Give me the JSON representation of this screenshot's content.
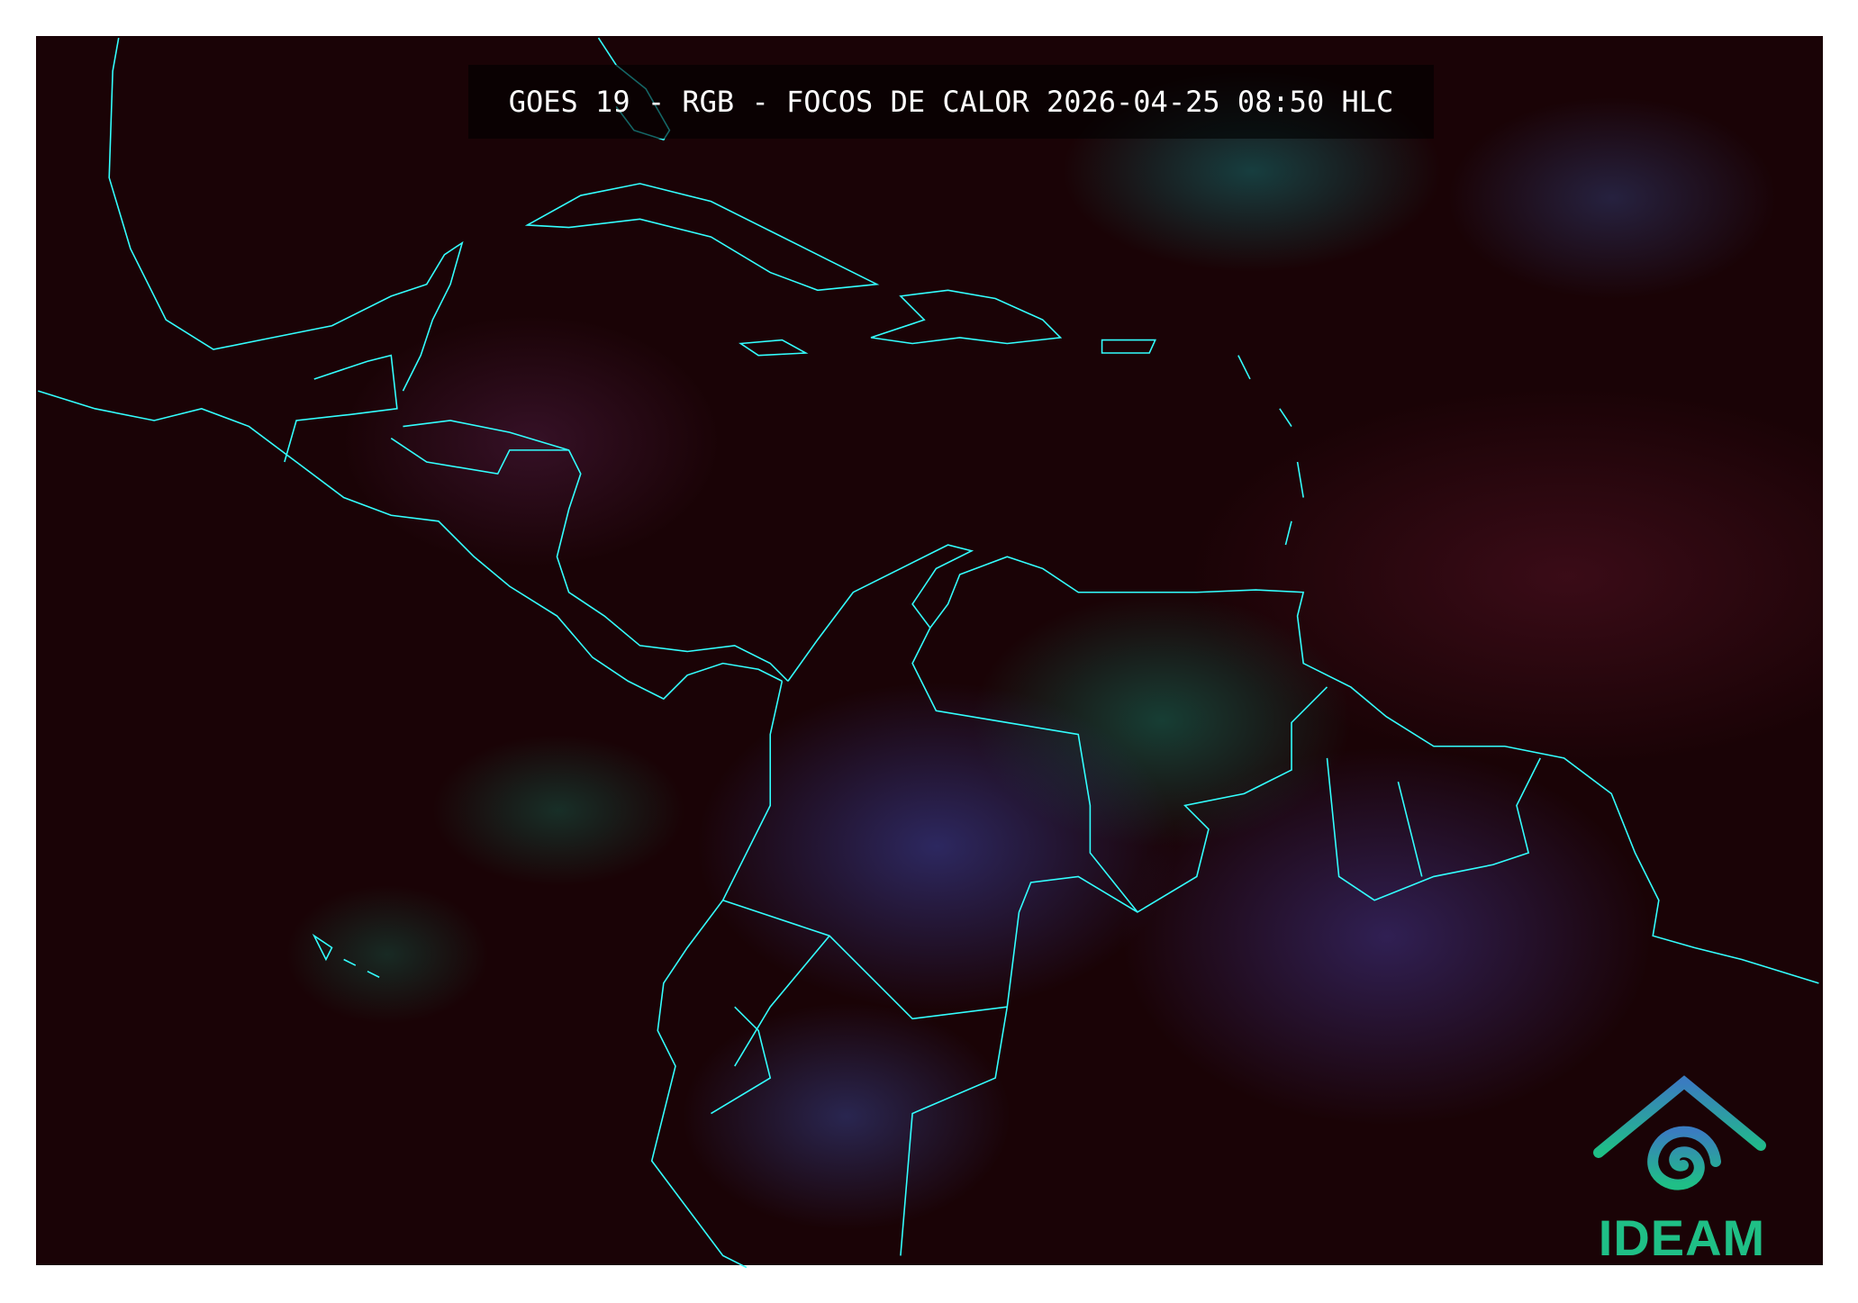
{
  "title": "GOES 19 - RGB - FOCOS DE CALOR 2026-04-25 08:50 HLC",
  "logo": {
    "text": "IDEAM",
    "color": "#1fbf86"
  },
  "colors": {
    "coastline": "#33ffff",
    "ocean": "#1a0306",
    "frame": "#ffffff"
  }
}
